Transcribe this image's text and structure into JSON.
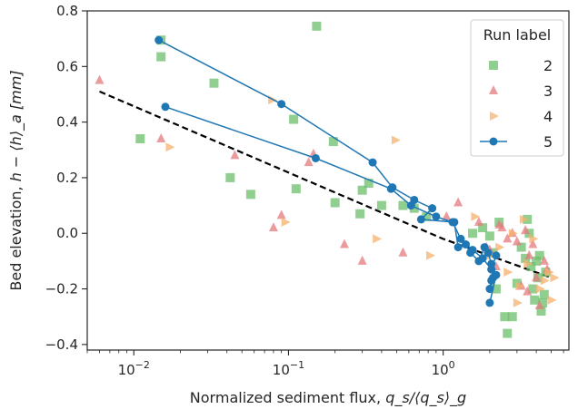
{
  "chart_data": {
    "type": "scatter",
    "xscale": "log",
    "xlim": [
      0.005,
      6.5
    ],
    "ylim": [
      -0.42,
      0.8
    ],
    "xlabel": {
      "main": "Normalized sediment flux, ",
      "math": "q_s/⟨q_s⟩_g"
    },
    "ylabel": {
      "main": "Bed elevation, ",
      "math": "h − ⟨h⟩_a [mm]"
    },
    "xticks": [
      {
        "value": 0.01,
        "base": "10",
        "exp": "−2"
      },
      {
        "value": 0.1,
        "base": "10",
        "exp": "−1"
      },
      {
        "value": 1,
        "base": "10",
        "exp": "0"
      }
    ],
    "yticks": [
      {
        "value": -0.4,
        "label": "−0.4"
      },
      {
        "value": -0.2,
        "label": "−0.2"
      },
      {
        "value": 0.0,
        "label": "0.0"
      },
      {
        "value": 0.2,
        "label": "0.2"
      },
      {
        "value": 0.4,
        "label": "0.4"
      },
      {
        "value": 0.6,
        "label": "0.6"
      },
      {
        "value": 0.8,
        "label": "0.8"
      }
    ],
    "legend": {
      "title": "Run label",
      "placement": "top-right",
      "entries": [
        "2",
        "3",
        "4",
        "5"
      ]
    },
    "trend_line": {
      "style": "dashed",
      "color": "#000000",
      "points": [
        [
          0.006,
          0.51
        ],
        [
          1.0,
          -0.02
        ],
        [
          5.0,
          -0.16
        ]
      ]
    },
    "series": [
      {
        "name": "2",
        "marker": "square",
        "color": "#6cbf6c",
        "points": [
          [
            0.011,
            0.34
          ],
          [
            0.015,
            0.635
          ],
          [
            0.015,
            0.695
          ],
          [
            0.033,
            0.54
          ],
          [
            0.042,
            0.2
          ],
          [
            0.057,
            0.14
          ],
          [
            0.108,
            0.41
          ],
          [
            0.112,
            0.16
          ],
          [
            0.152,
            0.745
          ],
          [
            0.195,
            0.33
          ],
          [
            0.2,
            0.11
          ],
          [
            0.29,
            0.07
          ],
          [
            0.3,
            0.155
          ],
          [
            0.33,
            0.18
          ],
          [
            0.4,
            0.1
          ],
          [
            0.55,
            0.1
          ],
          [
            0.65,
            0.09
          ],
          [
            0.78,
            0.06
          ],
          [
            1.55,
            0.0
          ],
          [
            1.8,
            0.02
          ],
          [
            2.0,
            -0.01
          ],
          [
            2.2,
            -0.2
          ],
          [
            2.5,
            -0.3
          ],
          [
            2.6,
            -0.36
          ],
          [
            2.8,
            -0.3
          ],
          [
            3.0,
            -0.18
          ],
          [
            3.2,
            -0.05
          ],
          [
            3.4,
            -0.09
          ],
          [
            3.5,
            0.05
          ],
          [
            3.7,
            -0.12
          ],
          [
            3.8,
            -0.2
          ],
          [
            4.0,
            -0.1
          ],
          [
            4.1,
            -0.16
          ],
          [
            4.2,
            -0.08
          ],
          [
            4.3,
            -0.28
          ],
          [
            4.4,
            -0.25
          ],
          [
            4.5,
            -0.22
          ],
          [
            4.6,
            -0.14
          ],
          [
            3.9,
            -0.24
          ],
          [
            3.6,
            0.0
          ],
          [
            2.3,
            0.04
          ],
          [
            2.1,
            -0.07
          ]
        ]
      },
      {
        "name": "3",
        "marker": "triangle",
        "color": "#e47a7e",
        "points": [
          [
            0.006,
            0.55
          ],
          [
            0.015,
            0.34
          ],
          [
            0.045,
            0.28
          ],
          [
            0.08,
            0.02
          ],
          [
            0.09,
            0.065
          ],
          [
            0.135,
            0.255
          ],
          [
            0.145,
            0.285
          ],
          [
            0.23,
            -0.04
          ],
          [
            0.3,
            -0.1
          ],
          [
            0.55,
            -0.07
          ],
          [
            1.05,
            0.06
          ],
          [
            1.25,
            0.11
          ],
          [
            1.7,
            0.04
          ],
          [
            2.0,
            -0.06
          ],
          [
            2.2,
            -0.12
          ],
          [
            2.4,
            0.02
          ],
          [
            2.6,
            -0.02
          ],
          [
            2.8,
            0.0
          ],
          [
            3.0,
            -0.03
          ],
          [
            3.2,
            -0.19
          ],
          [
            3.4,
            0.01
          ],
          [
            3.6,
            -0.08
          ],
          [
            3.8,
            -0.04
          ],
          [
            4.0,
            -0.16
          ],
          [
            4.2,
            -0.26
          ],
          [
            4.5,
            -0.1
          ],
          [
            4.7,
            -0.13
          ],
          [
            3.5,
            -0.21
          ],
          [
            2.3,
            0.03
          ],
          [
            1.9,
            -0.05
          ],
          [
            2.05,
            -0.12
          ]
        ]
      },
      {
        "name": "4",
        "marker": "triangle-right",
        "color": "#f5b26d",
        "points": [
          [
            0.017,
            0.31
          ],
          [
            0.078,
            0.48
          ],
          [
            0.095,
            0.04
          ],
          [
            0.37,
            -0.02
          ],
          [
            0.49,
            0.335
          ],
          [
            0.82,
            -0.08
          ],
          [
            1.6,
            0.06
          ],
          [
            2.0,
            -0.08
          ],
          [
            2.3,
            -0.05
          ],
          [
            2.6,
            -0.14
          ],
          [
            2.8,
            0.0
          ],
          [
            3.0,
            -0.25
          ],
          [
            3.3,
            0.05
          ],
          [
            3.5,
            -0.11
          ],
          [
            3.8,
            -0.02
          ],
          [
            4.2,
            -0.2
          ],
          [
            4.5,
            -0.17
          ],
          [
            4.8,
            -0.14
          ],
          [
            5.0,
            -0.24
          ],
          [
            5.2,
            -0.16
          ],
          [
            3.1,
            -0.19
          ]
        ]
      },
      {
        "name": "5",
        "marker": "circle",
        "color": "#1f77b4",
        "connected": true,
        "points": [
          [
            0.0145,
            0.695
          ],
          [
            0.09,
            0.465
          ],
          [
            0.35,
            0.255
          ],
          [
            0.47,
            0.165
          ],
          [
            0.65,
            0.12
          ],
          [
            0.85,
            0.09
          ],
          [
            0.72,
            0.05
          ],
          [
            1.18,
            0.04
          ],
          [
            1.25,
            -0.05
          ],
          [
            1.4,
            -0.04
          ],
          [
            1.5,
            -0.07
          ],
          [
            1.7,
            -0.1
          ],
          [
            1.85,
            -0.05
          ],
          [
            1.95,
            -0.07
          ],
          [
            2.05,
            -0.11
          ],
          [
            2.1,
            -0.16
          ],
          [
            2.0,
            -0.2
          ],
          [
            2.05,
            -0.17
          ],
          [
            2.2,
            -0.15
          ],
          [
            2.0,
            -0.25
          ]
        ]
      },
      {
        "name": "5",
        "marker": "circle",
        "color": "#1f77b4",
        "connected": true,
        "legend": false,
        "points": [
          [
            0.016,
            0.455
          ],
          [
            0.15,
            0.27
          ],
          [
            0.46,
            0.16
          ],
          [
            0.62,
            0.1
          ],
          [
            0.9,
            0.06
          ],
          [
            1.15,
            0.04
          ],
          [
            1.3,
            -0.02
          ],
          [
            1.55,
            -0.06
          ],
          [
            1.8,
            -0.09
          ],
          [
            2.05,
            -0.13
          ],
          [
            2.2,
            -0.08
          ]
        ]
      }
    ]
  }
}
